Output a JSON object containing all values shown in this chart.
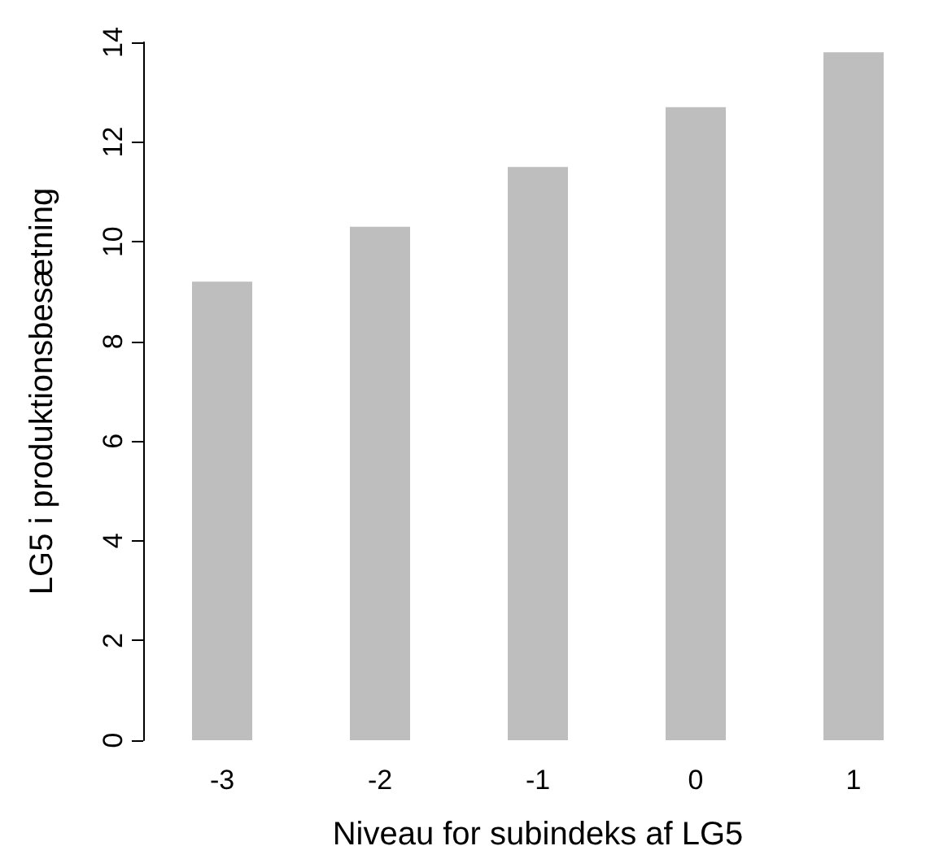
{
  "chart_data": {
    "type": "bar",
    "xlabel": "Niveau for subindeks af LG5",
    "ylabel": "LG5 i produktionsbesætning",
    "categories": [
      "-3",
      "-2",
      "-1",
      "0",
      "1"
    ],
    "values": [
      9.2,
      10.3,
      11.5,
      12.7,
      13.8
    ],
    "color": "#bebebe",
    "ylim": [
      0,
      14
    ],
    "yticks": [
      0,
      2,
      4,
      6,
      8,
      10,
      12,
      14
    ],
    "grid": false
  }
}
